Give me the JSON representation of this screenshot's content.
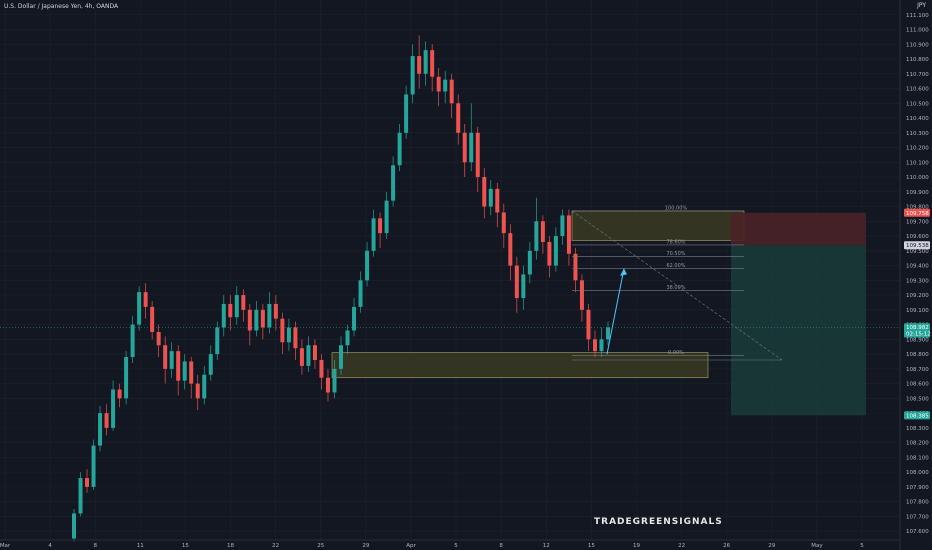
{
  "header": {
    "title": "U.S. Dollar / Japanese Yen, 4h, OANDA",
    "currency": "JPY"
  },
  "colors": {
    "up": "#26a69a",
    "down": "#ef5350",
    "zone_fill": "#3b3a22",
    "zone_border": "#9a9461",
    "tp_fill": "#1b3a3a",
    "sl_fill": "#4a2227",
    "arrow": "#4fc3f7"
  },
  "chart_data": {
    "type": "candlestick",
    "y_axis": {
      "ticks": [
        "107.600",
        "107.700",
        "107.800",
        "107.900",
        "108.000",
        "108.100",
        "108.200",
        "108.300",
        "108.400",
        "108.500",
        "108.600",
        "108.700",
        "108.800",
        "108.900",
        "109.000",
        "109.100",
        "109.200",
        "109.300",
        "109.400",
        "109.500",
        "109.600",
        "109.700",
        "109.800",
        "109.900",
        "110.000",
        "110.100",
        "110.200",
        "110.300",
        "110.400",
        "110.500",
        "110.600",
        "110.700",
        "110.800",
        "110.900",
        "111.000",
        "111.100"
      ],
      "ylim": [
        107.54,
        111.2
      ]
    },
    "x_axis": {
      "ticks": [
        "Mar",
        "4",
        "8",
        "11",
        "15",
        "18",
        "22",
        "25",
        "29",
        "Apr",
        "5",
        "8",
        "12",
        "15",
        "19",
        "22",
        "26",
        "29",
        "May",
        "5"
      ]
    },
    "price_tags": [
      {
        "label": "109.758",
        "price": 109.758,
        "color": "#ef5350"
      },
      {
        "label": "109.538",
        "price": 109.538,
        "color": "#d1d4dc"
      },
      {
        "label": "108.982",
        "price": 108.982,
        "color": "#26a69a"
      },
      {
        "label": "02:15:12",
        "price": 108.94,
        "color": "#26a69a"
      },
      {
        "label": "108.385",
        "price": 108.385,
        "color": "#26a69a"
      }
    ],
    "fib_levels": [
      {
        "label": "100.00%",
        "price": 109.77
      },
      {
        "label": "78.60%",
        "price": 109.54
      },
      {
        "label": "70.50%",
        "price": 109.46
      },
      {
        "label": "62.00%",
        "price": 109.38
      },
      {
        "label": "38.00%",
        "price": 109.23
      },
      {
        "label": "0.00%",
        "price": 108.79
      }
    ],
    "zones": [
      {
        "name": "supply",
        "top": 109.77,
        "bottom": 109.57
      },
      {
        "name": "demand",
        "top": 108.81,
        "bottom": 108.64
      }
    ],
    "position": {
      "entry": 109.538,
      "stop": 109.758,
      "target": 108.385
    },
    "candles": [
      [
        107.55,
        107.72,
        107.53,
        107.75
      ],
      [
        107.72,
        107.96,
        107.7,
        108.0
      ],
      [
        107.96,
        107.9,
        107.86,
        108.02
      ],
      [
        107.9,
        108.18,
        107.88,
        108.22
      ],
      [
        108.18,
        108.4,
        108.14,
        108.45
      ],
      [
        108.4,
        108.3,
        108.25,
        108.46
      ],
      [
        108.3,
        108.56,
        108.28,
        108.62
      ],
      [
        108.56,
        108.5,
        108.44,
        108.6
      ],
      [
        108.5,
        108.78,
        108.46,
        108.82
      ],
      [
        108.78,
        109.0,
        108.74,
        109.06
      ],
      [
        109.0,
        109.22,
        108.96,
        109.26
      ],
      [
        109.22,
        109.12,
        109.04,
        109.28
      ],
      [
        109.12,
        108.95,
        108.9,
        109.16
      ],
      [
        108.95,
        108.86,
        108.78,
        109.0
      ],
      [
        108.86,
        108.7,
        108.6,
        108.92
      ],
      [
        108.7,
        108.82,
        108.64,
        108.88
      ],
      [
        108.82,
        108.62,
        108.52,
        108.86
      ],
      [
        108.62,
        108.75,
        108.56,
        108.8
      ],
      [
        108.75,
        108.6,
        108.5,
        108.78
      ],
      [
        108.6,
        108.5,
        108.42,
        108.66
      ],
      [
        108.5,
        108.66,
        108.46,
        108.72
      ],
      [
        108.66,
        108.8,
        108.62,
        108.86
      ],
      [
        108.8,
        108.98,
        108.76,
        109.02
      ],
      [
        108.98,
        109.14,
        108.92,
        109.2
      ],
      [
        109.14,
        109.05,
        108.96,
        109.2
      ],
      [
        109.05,
        109.2,
        109.0,
        109.26
      ],
      [
        109.2,
        109.1,
        109.02,
        109.24
      ],
      [
        109.1,
        108.96,
        108.86,
        109.14
      ],
      [
        108.96,
        109.1,
        108.92,
        109.16
      ],
      [
        109.1,
        108.98,
        108.9,
        109.14
      ],
      [
        108.98,
        109.14,
        108.94,
        109.22
      ],
      [
        109.14,
        109.04,
        108.96,
        109.2
      ],
      [
        109.04,
        108.88,
        108.8,
        109.08
      ],
      [
        108.88,
        108.98,
        108.82,
        109.04
      ],
      [
        108.98,
        108.84,
        108.76,
        109.02
      ],
      [
        108.84,
        108.72,
        108.66,
        108.9
      ],
      [
        108.72,
        108.86,
        108.68,
        108.92
      ],
      [
        108.86,
        108.76,
        108.7,
        108.9
      ],
      [
        108.76,
        108.64,
        108.56,
        108.8
      ],
      [
        108.64,
        108.54,
        108.48,
        108.7
      ],
      [
        108.54,
        108.7,
        108.5,
        108.76
      ],
      [
        108.7,
        108.86,
        108.66,
        108.92
      ],
      [
        108.86,
        108.96,
        108.8,
        109.0
      ],
      [
        108.96,
        109.12,
        108.92,
        109.18
      ],
      [
        109.12,
        109.3,
        109.08,
        109.36
      ],
      [
        109.3,
        109.5,
        109.26,
        109.56
      ],
      [
        109.5,
        109.72,
        109.46,
        109.78
      ],
      [
        109.72,
        109.62,
        109.52,
        109.76
      ],
      [
        109.62,
        109.84,
        109.58,
        109.9
      ],
      [
        109.84,
        110.08,
        109.8,
        110.14
      ],
      [
        110.08,
        110.3,
        110.04,
        110.36
      ],
      [
        110.3,
        110.56,
        110.26,
        110.62
      ],
      [
        110.56,
        110.82,
        110.5,
        110.9
      ],
      [
        110.82,
        110.7,
        110.6,
        110.96
      ],
      [
        110.7,
        110.86,
        110.62,
        110.92
      ],
      [
        110.86,
        110.68,
        110.58,
        110.9
      ],
      [
        110.68,
        110.58,
        110.48,
        110.74
      ],
      [
        110.58,
        110.66,
        110.5,
        110.72
      ],
      [
        110.66,
        110.5,
        110.4,
        110.7
      ],
      [
        110.5,
        110.3,
        110.22,
        110.56
      ],
      [
        110.3,
        110.1,
        110.0,
        110.36
      ],
      [
        110.1,
        110.3,
        110.04,
        110.5
      ],
      [
        110.3,
        110.0,
        109.9,
        110.34
      ],
      [
        110.0,
        109.8,
        109.72,
        110.06
      ],
      [
        109.8,
        109.92,
        109.74,
        109.98
      ],
      [
        109.92,
        109.76,
        109.66,
        109.96
      ],
      [
        109.76,
        109.62,
        109.52,
        109.82
      ],
      [
        109.62,
        109.4,
        109.3,
        109.68
      ],
      [
        109.4,
        109.18,
        109.08,
        109.46
      ],
      [
        109.18,
        109.34,
        109.1,
        109.4
      ],
      [
        109.34,
        109.5,
        109.28,
        109.56
      ],
      [
        109.5,
        109.7,
        109.44,
        109.86
      ],
      [
        109.7,
        109.56,
        109.48,
        109.74
      ],
      [
        109.56,
        109.4,
        109.32,
        109.6
      ],
      [
        109.4,
        109.6,
        109.36,
        109.66
      ],
      [
        109.6,
        109.74,
        109.54,
        109.78
      ],
      [
        109.74,
        109.48,
        109.4,
        109.78
      ],
      [
        109.48,
        109.3,
        109.22,
        109.52
      ],
      [
        109.3,
        109.1,
        109.02,
        109.34
      ],
      [
        109.1,
        108.9,
        108.82,
        109.14
      ],
      [
        108.9,
        108.82,
        108.78,
        108.96
      ],
      [
        108.82,
        108.9,
        108.78,
        108.98
      ],
      [
        108.9,
        108.98,
        108.86,
        109.02
      ]
    ]
  },
  "watermark": "TRADEGREENSIGNALS"
}
